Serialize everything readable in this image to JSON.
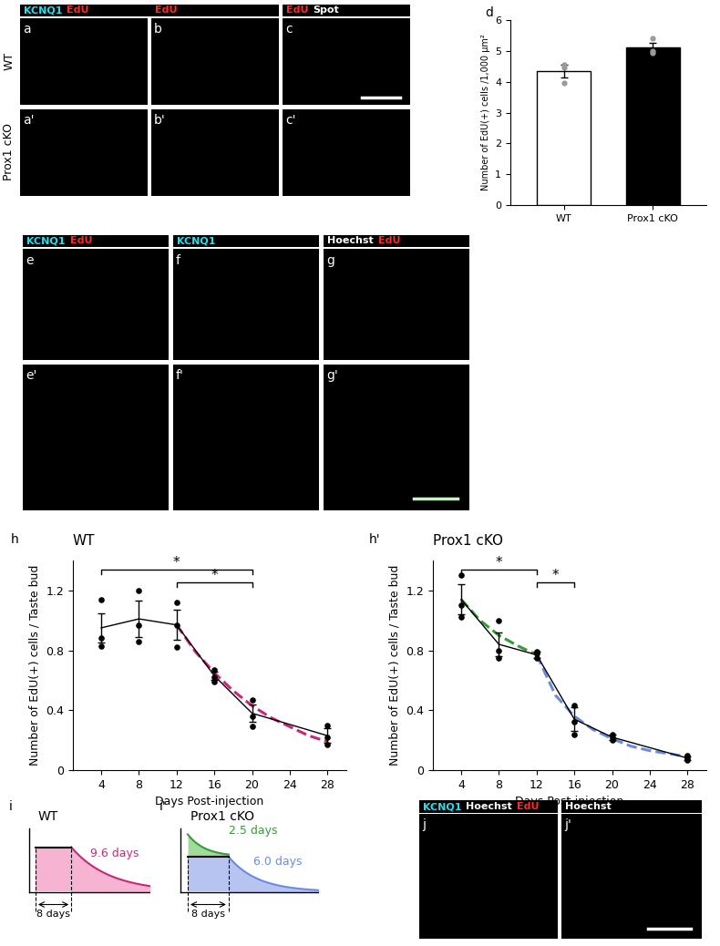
{
  "panel_labels": [
    "a",
    "a'",
    "b",
    "b'",
    "c",
    "c'",
    "d",
    "e",
    "e'",
    "f",
    "f'",
    "g",
    "g'",
    "h",
    "h'",
    "i",
    "i'",
    "j",
    "j'"
  ],
  "image_panels": {
    "row_labels": [
      "WT",
      "Prox1 cKO"
    ],
    "top_headers": [
      [
        {
          "text": "KCNQ1",
          "color": "#22e0f0"
        },
        {
          "text": "EdU",
          "color": "#ff2a2a"
        }
      ],
      [
        {
          "text": "EdU",
          "color": "#ff2a2a"
        }
      ],
      [
        {
          "text": "EdU",
          "color": "#ff2a2a"
        },
        {
          "text": "Spot",
          "color": "#ffffff"
        }
      ]
    ],
    "middle_headers": [
      [
        {
          "text": "KCNQ1",
          "color": "#22e0f0"
        },
        {
          "text": "EdU",
          "color": "#ff2a2a"
        }
      ],
      [
        {
          "text": "KCNQ1",
          "color": "#22e0f0"
        }
      ],
      [
        {
          "text": "Hoechst",
          "color": "#ffffff"
        },
        {
          "text": "EdU",
          "color": "#ff2a2a"
        }
      ]
    ],
    "bottom_headers": [
      [
        {
          "text": "KCNQ1",
          "color": "#22e0f0"
        },
        {
          "text": "Hoechst",
          "color": "#ffffff"
        },
        {
          "text": "EdU",
          "color": "#ff2a2a"
        }
      ],
      [
        {
          "text": "Hoechst",
          "color": "#ffffff"
        }
      ]
    ]
  },
  "chart_data": [
    {
      "type": "bar",
      "categories": [
        "WT",
        "Prox1 cKO"
      ],
      "values": [
        4.35,
        5.12
      ],
      "errors": [
        0.2,
        0.15
      ],
      "points": [
        [
          4.55,
          4.45,
          3.95
        ],
        [
          5.4,
          5.0,
          4.95
        ]
      ],
      "colors": [
        "#ffffff",
        "#000000"
      ],
      "ylabel": "Number of EdU(+) cells /1,000 μm²",
      "ylim": [
        0,
        6
      ],
      "yticks": [
        0,
        1,
        2,
        3,
        4,
        5,
        6
      ]
    },
    {
      "type": "line",
      "title": "WT",
      "x": [
        4,
        8,
        12,
        16,
        20,
        28
      ],
      "values": [
        0.95,
        1.01,
        0.97,
        0.63,
        0.38,
        0.23
      ],
      "errors": [
        0.1,
        0.12,
        0.1,
        0.03,
        0.06,
        0.05
      ],
      "points": [
        [
          1.14,
          0.88,
          0.83
        ],
        [
          1.2,
          0.97,
          0.86
        ],
        [
          1.12,
          0.97,
          0.82
        ],
        [
          0.67,
          0.62,
          0.59
        ],
        [
          0.47,
          0.36,
          0.29
        ],
        [
          0.3,
          0.22,
          0.17
        ]
      ],
      "color": "#000000",
      "fits": [
        {
          "x": [
            12,
            14,
            16,
            18,
            20,
            22,
            24,
            26,
            28
          ],
          "values": [
            0.97,
            0.79,
            0.65,
            0.53,
            0.43,
            0.35,
            0.29,
            0.23,
            0.19
          ],
          "color": "#c8287a",
          "line_style": "dashed"
        }
      ],
      "significance": [
        {
          "x": [
            4,
            20
          ],
          "label": "*"
        },
        {
          "x": [
            12,
            20
          ],
          "label": "*"
        }
      ],
      "xlabel": "Days Post-injection",
      "ylabel": "Number of EdU(+) cells / Taste bud",
      "xlim": [
        1,
        30
      ],
      "xticks": [
        4,
        8,
        12,
        16,
        20,
        24,
        28
      ],
      "ylim": [
        0,
        1.4
      ],
      "yticks": [
        0,
        0.4,
        0.8,
        1.2
      ]
    },
    {
      "type": "line",
      "title": "Prox1 cKO",
      "x": [
        4,
        8,
        12,
        16,
        20,
        28
      ],
      "values": [
        1.14,
        0.84,
        0.77,
        0.34,
        0.22,
        0.08
      ],
      "errors": [
        0.1,
        0.08,
        0.02,
        0.08,
        0.02,
        0.01
      ],
      "points": [
        [
          1.3,
          1.1,
          1.02
        ],
        [
          1.0,
          0.8,
          0.75
        ],
        [
          0.79,
          0.78,
          0.75
        ],
        [
          0.43,
          0.32,
          0.24
        ],
        [
          0.24,
          0.22,
          0.2
        ],
        [
          0.1,
          0.08,
          0.07
        ]
      ],
      "color": "#000000",
      "fits": [
        {
          "x": [
            4,
            6,
            8,
            10,
            12
          ],
          "values": [
            1.14,
            1.0,
            0.9,
            0.83,
            0.77
          ],
          "color": "#3a9a3a",
          "line_style": "dashed"
        },
        {
          "x": [
            12,
            14,
            16,
            18,
            20,
            22,
            24,
            26,
            28
          ],
          "values": [
            0.77,
            0.5,
            0.36,
            0.27,
            0.21,
            0.16,
            0.13,
            0.11,
            0.09
          ],
          "color": "#6a8be0",
          "line_style": "dashed"
        }
      ],
      "significance": [
        {
          "x": [
            4,
            12
          ],
          "label": "*"
        },
        {
          "x": [
            12,
            16
          ],
          "label": "*"
        }
      ],
      "xlabel": "Days Post-injection",
      "ylabel": "Number of EdU(+) cells / Taste bud",
      "xlim": [
        1,
        30
      ],
      "xticks": [
        4,
        8,
        12,
        16,
        20,
        24,
        28
      ],
      "ylim": [
        0,
        1.4
      ],
      "yticks": [
        0,
        0.4,
        0.8,
        1.2
      ]
    }
  ],
  "schematics": [
    {
      "title": "WT",
      "plateau_label": "8 days",
      "phases": [
        {
          "label": "9.6 days",
          "color": "#c8287a",
          "fill": "#f6b3d2"
        }
      ]
    },
    {
      "title": "Prox1 cKO",
      "plateau_label": "8 days",
      "phases": [
        {
          "label": "2.5 days",
          "color": "#3a9a3a",
          "fill": "#9fdc9a"
        },
        {
          "label": "6.0 days",
          "color": "#6a8be0",
          "fill": "#b7c4f2"
        }
      ]
    }
  ]
}
